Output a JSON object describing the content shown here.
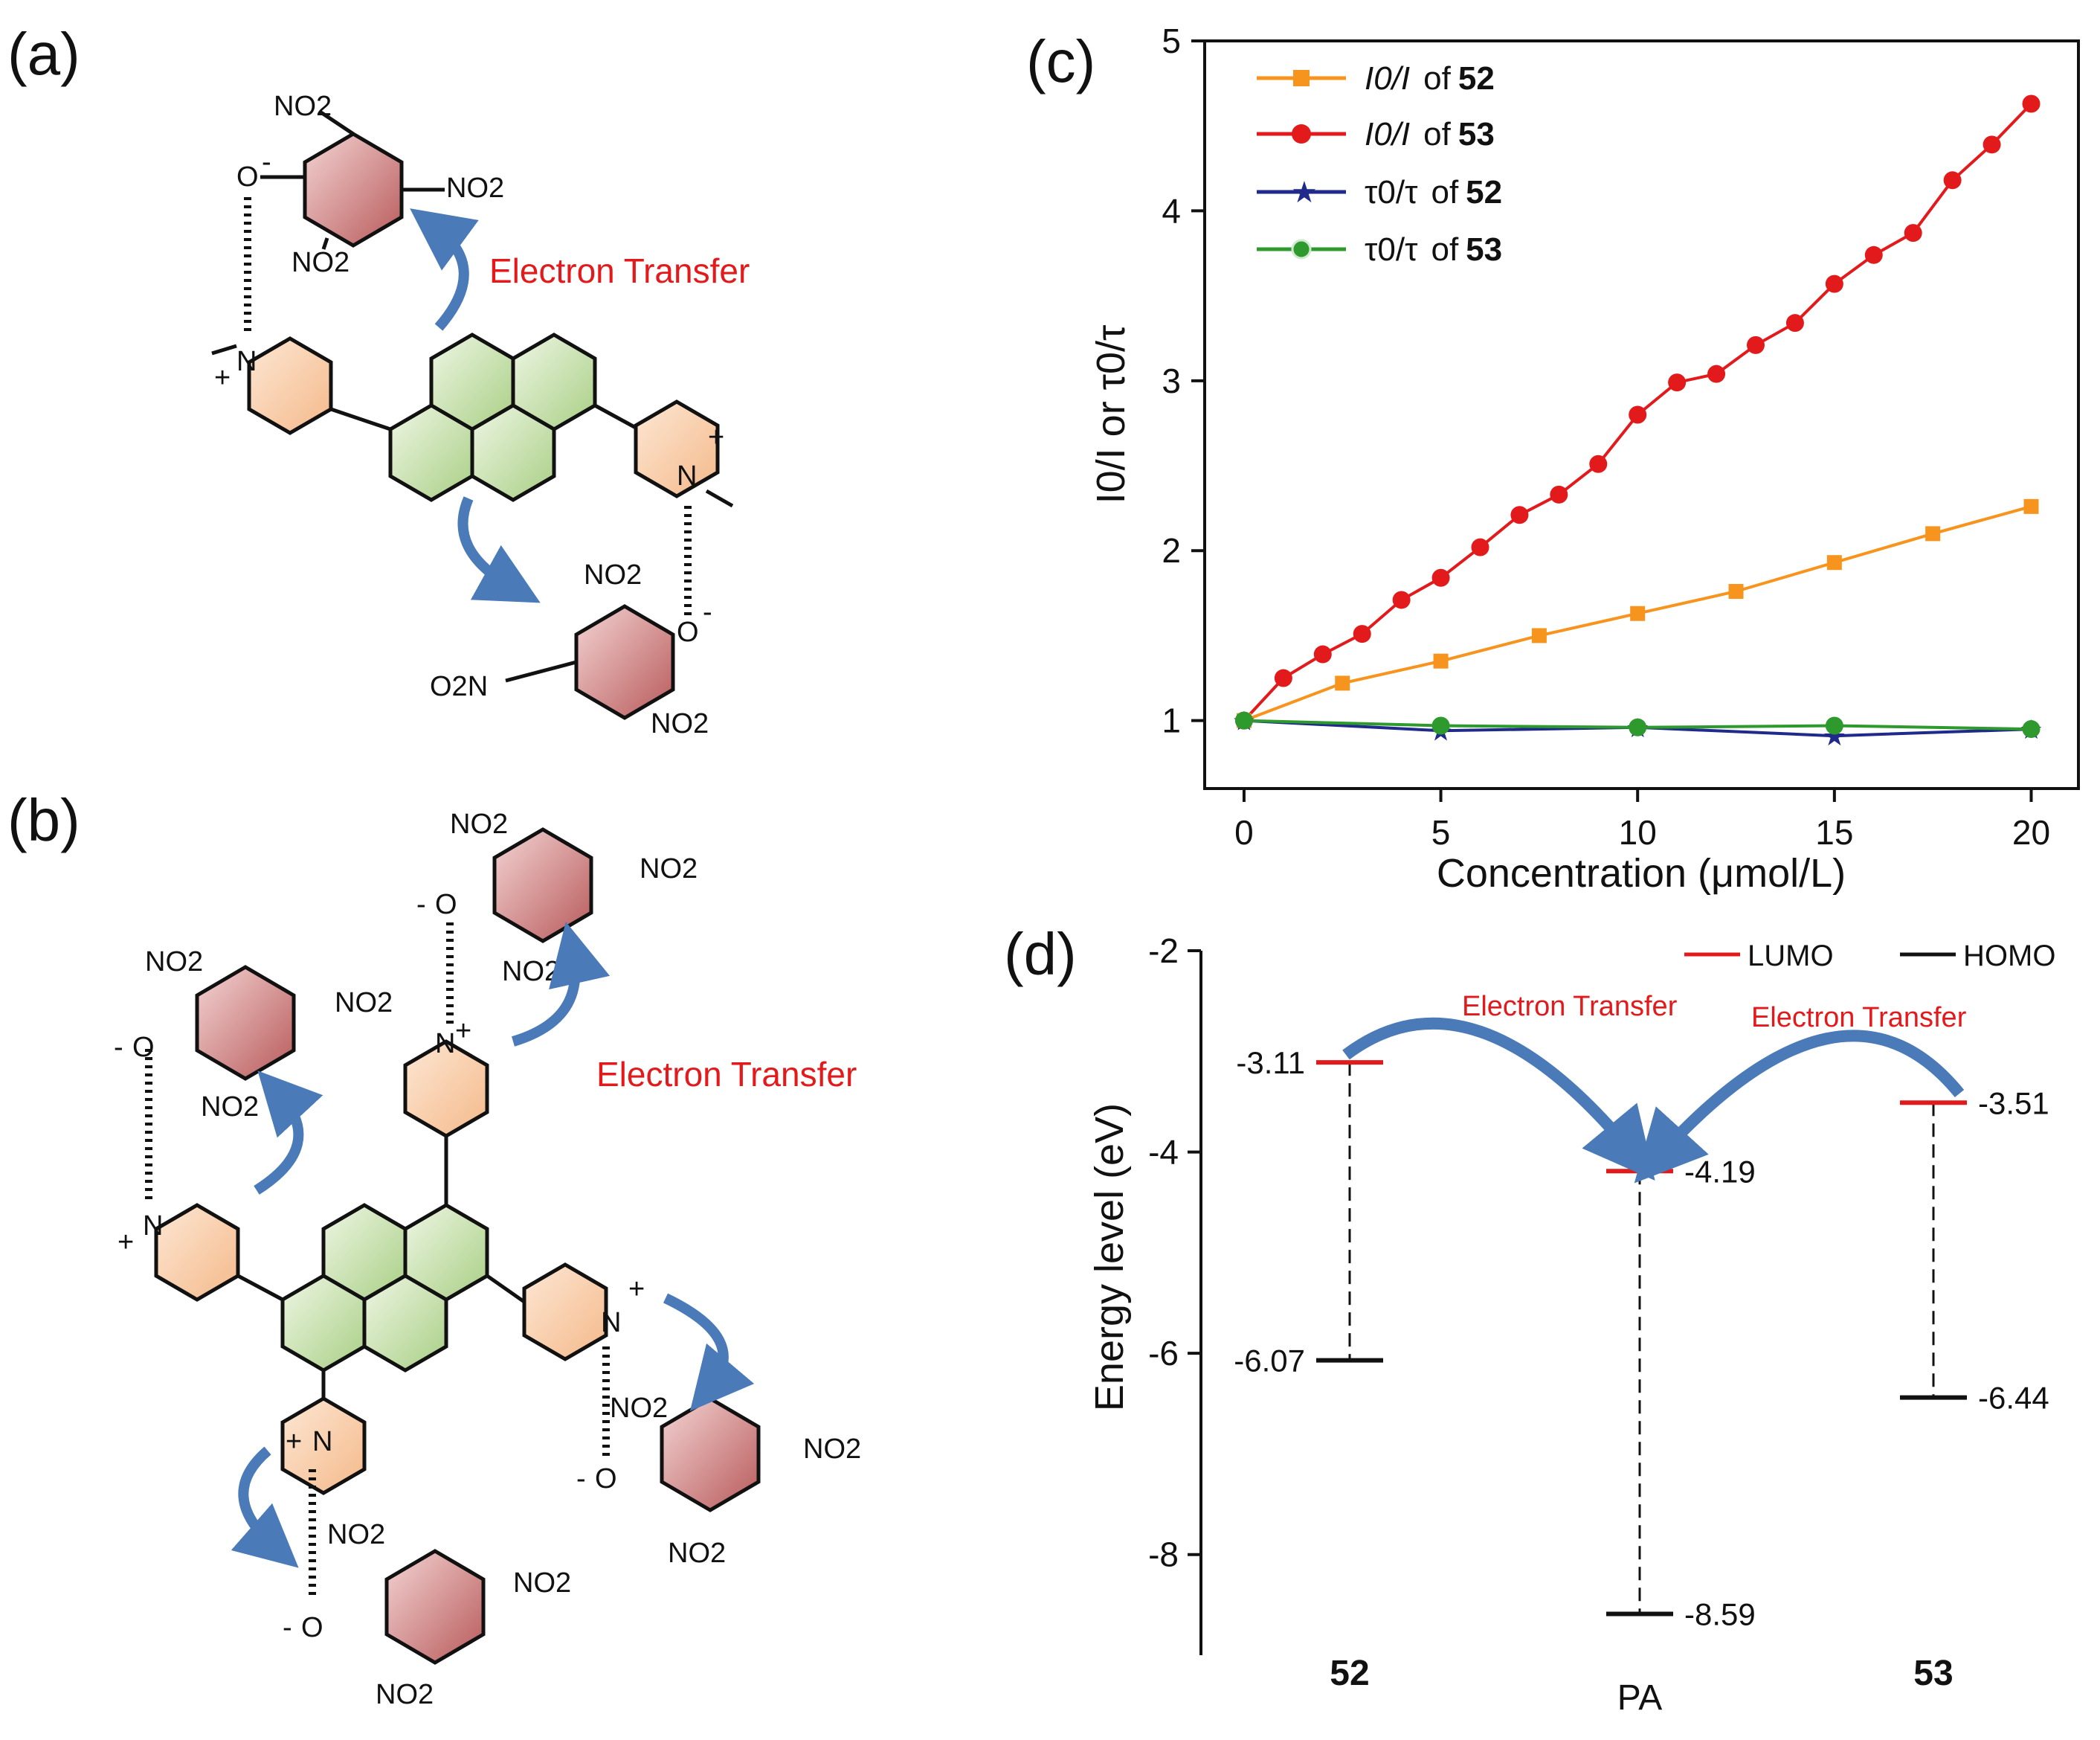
{
  "panels": {
    "a": "(a)",
    "b": "(b)",
    "c": "(c)",
    "d": "(d)"
  },
  "schemes": {
    "electron_transfer": "Electron Transfer",
    "no2": "NO2",
    "o2n": "O2N",
    "o_minus": "O",
    "n": "N",
    "plus": "+",
    "minus": "-"
  },
  "colors": {
    "orange": "#f7941d",
    "red": "#e31a1c",
    "blue": "#1f2a8a",
    "green": "#2e9a2e",
    "arrow_blue": "#4a7ab8",
    "nitro_ring": "#b85a5a",
    "pyridinium_ring": "#f6c9a0",
    "pyrene_ring": "#b9d79c"
  },
  "chart_data": [
    {
      "type": "line",
      "panel": "(c)",
      "xlabel": "Concentration (μmol/L)",
      "ylabel": "I0/I or τ0/τ",
      "xlim": [
        -1,
        21.2
      ],
      "ylim": [
        0.6,
        5
      ],
      "xticks": [
        0,
        5,
        10,
        15,
        20
      ],
      "yticks": [
        1,
        2,
        3,
        4,
        5
      ],
      "legend_position": "top-left",
      "series": [
        {
          "name": "I0/I of 52",
          "label_main": "I0/I",
          "label_of": "of",
          "label_id": "52",
          "marker": "square",
          "color": "#f7941d",
          "x": [
            0,
            2.5,
            5,
            7.5,
            10,
            12.5,
            15,
            17.5,
            20
          ],
          "y": [
            1.0,
            1.22,
            1.35,
            1.5,
            1.63,
            1.76,
            1.93,
            2.1,
            2.26
          ]
        },
        {
          "name": "I0/I of 53",
          "label_main": "I0/I",
          "label_of": "of",
          "label_id": "53",
          "marker": "circle",
          "color": "#e31a1c",
          "x": [
            0,
            1,
            2,
            3,
            4,
            5,
            6,
            7,
            8,
            9,
            10,
            11,
            12,
            13,
            14,
            15,
            16,
            17,
            18,
            19,
            20
          ],
          "y": [
            1.0,
            1.25,
            1.39,
            1.51,
            1.71,
            1.84,
            2.02,
            2.21,
            2.33,
            2.51,
            2.8,
            2.99,
            3.04,
            3.21,
            3.34,
            3.57,
            3.74,
            3.87,
            4.18,
            4.39,
            4.63
          ]
        },
        {
          "name": "τ0/τ of 52",
          "label_main": "τ0/τ",
          "label_of": "of",
          "label_id": "52",
          "marker": "star",
          "color": "#1f2a8a",
          "x": [
            0,
            5,
            10,
            15,
            20
          ],
          "y": [
            1.0,
            0.94,
            0.96,
            0.91,
            0.95
          ]
        },
        {
          "name": "τ0/τ of 53",
          "label_main": "τ0/τ",
          "label_of": "of",
          "label_id": "53",
          "marker": "circle",
          "color": "#2e9a2e",
          "x": [
            0,
            5,
            10,
            15,
            20
          ],
          "y": [
            1.0,
            0.97,
            0.96,
            0.97,
            0.95
          ]
        }
      ]
    },
    {
      "type": "energy-level",
      "panel": "(d)",
      "ylabel": "Energy  level (eV)",
      "ylim": [
        -9,
        -2
      ],
      "yticks": [
        -2,
        -4,
        -6,
        -8
      ],
      "legend": [
        {
          "name": "LUMO",
          "color": "#e31a1c"
        },
        {
          "name": "HOMO",
          "color": "#111111"
        }
      ],
      "species": [
        {
          "name": "52",
          "bold": true,
          "lumo": -3.11,
          "homo": -6.07,
          "lumo_label": "-3.11",
          "homo_label": "-6.07"
        },
        {
          "name": "PA",
          "bold": false,
          "lumo": -4.19,
          "homo": -8.59,
          "lumo_label": "-4.19",
          "homo_label": "-8.59"
        },
        {
          "name": "53",
          "bold": true,
          "lumo": -3.51,
          "homo": -6.44,
          "lumo_label": "-3.51",
          "homo_label": "-6.44"
        }
      ],
      "annotations": [
        "Electron Transfer",
        "Electron Transfer"
      ]
    }
  ]
}
